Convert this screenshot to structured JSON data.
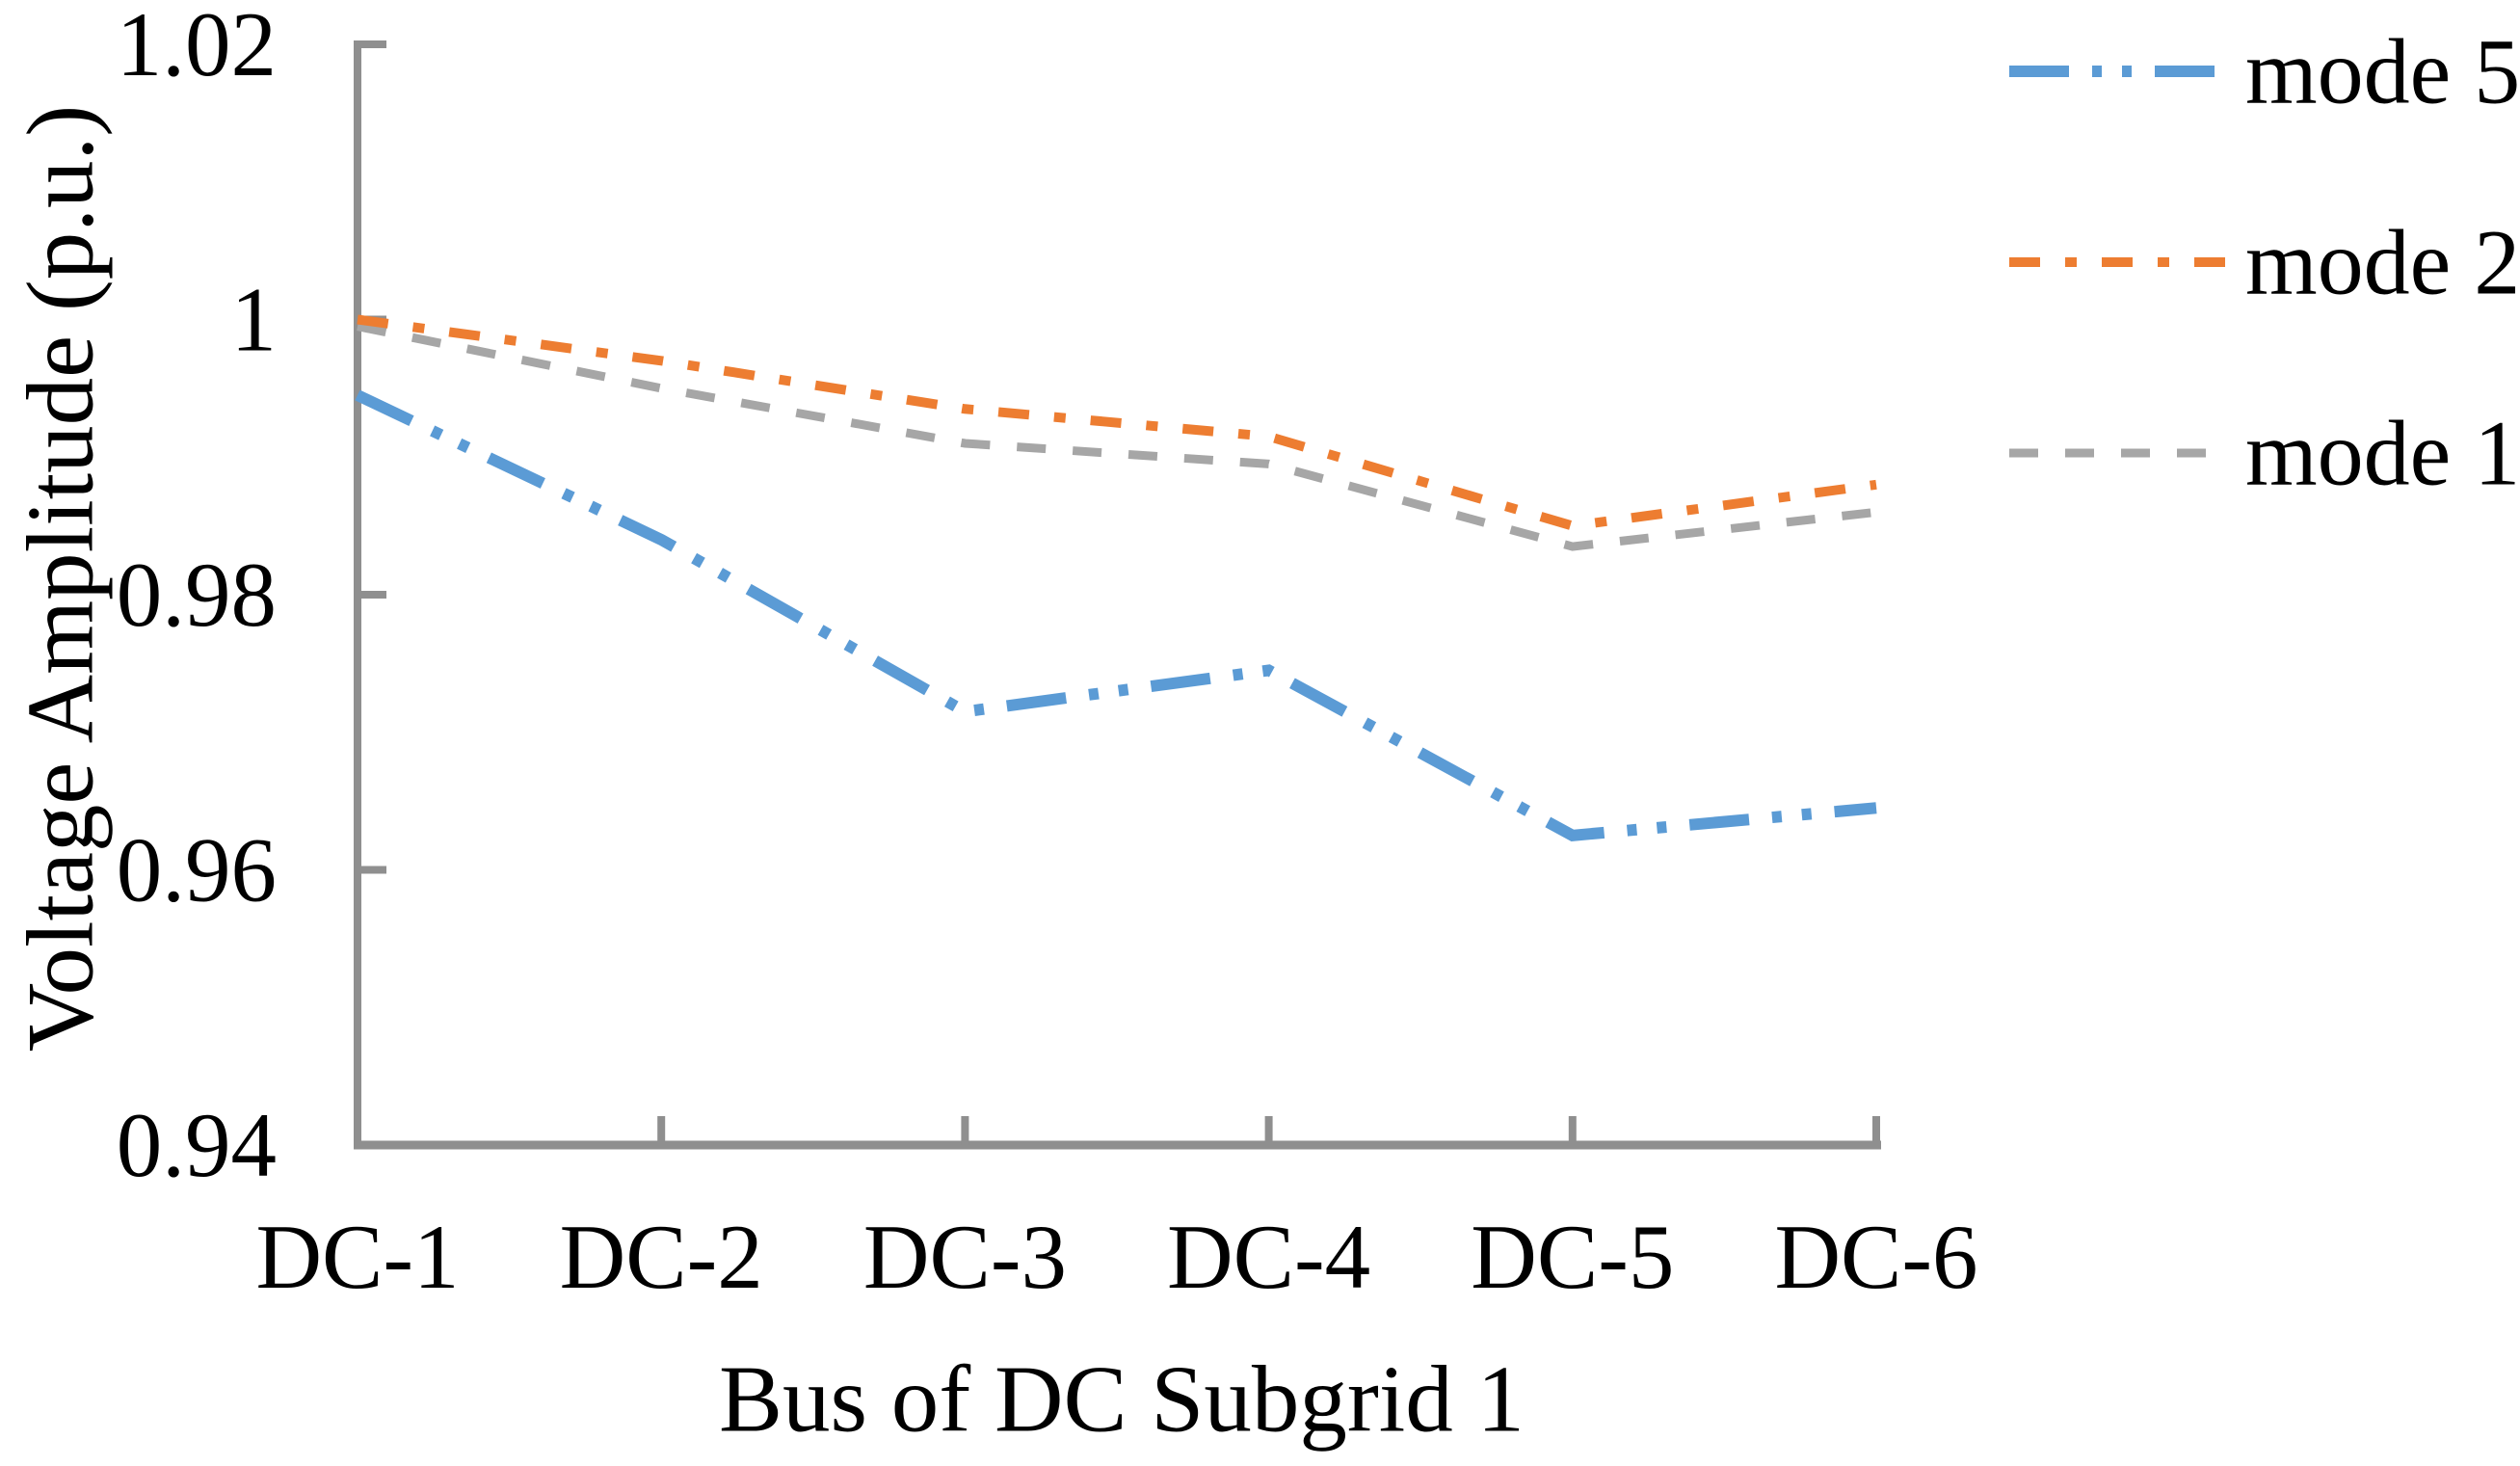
{
  "figure": {
    "background": "#FFFFFF"
  },
  "chart_data": {
    "type": "line",
    "title": "",
    "xlabel": "Bus of DC Subgrid 1",
    "ylabel": "Voltage Amplitude (p.u.)",
    "categories": [
      "DC-1",
      "DC-2",
      "DC-3",
      "DC-4",
      "DC-5",
      "DC-6"
    ],
    "series": [
      {
        "name": "mode 5",
        "color": "#5B9BD5",
        "dash": "long-dash-dot-dot",
        "stroke_width": 12,
        "values": [
          0.9945,
          0.984,
          0.9715,
          0.9745,
          0.9625,
          0.9645
        ]
      },
      {
        "name": "mode 2",
        "color": "#ED7D31",
        "dash": "dash-dot",
        "stroke_width": 10,
        "values": [
          1.0,
          0.997,
          0.9935,
          0.9915,
          0.985,
          0.988
        ]
      },
      {
        "name": "mode 1",
        "color": "#A6A6A6",
        "dash": "dash",
        "stroke_width": 9,
        "values": [
          0.9995,
          0.995,
          0.991,
          0.9895,
          0.9835,
          0.986
        ]
      }
    ],
    "ylim": [
      0.94,
      1.02
    ],
    "ytick_step": 0.02,
    "yticks": [
      {
        "value": 1.02,
        "label": "1.02"
      },
      {
        "value": 1.0,
        "label": "1"
      },
      {
        "value": 0.98,
        "label": "0.98"
      },
      {
        "value": 0.96,
        "label": "0.96"
      },
      {
        "value": 0.94,
        "label": "0.94"
      }
    ],
    "legend_position": "right",
    "legend_entries": [
      "mode 5",
      "mode 2",
      "mode 1"
    ],
    "grid": false,
    "axis_color": "#8F8F8F",
    "text_color": "#000000"
  }
}
